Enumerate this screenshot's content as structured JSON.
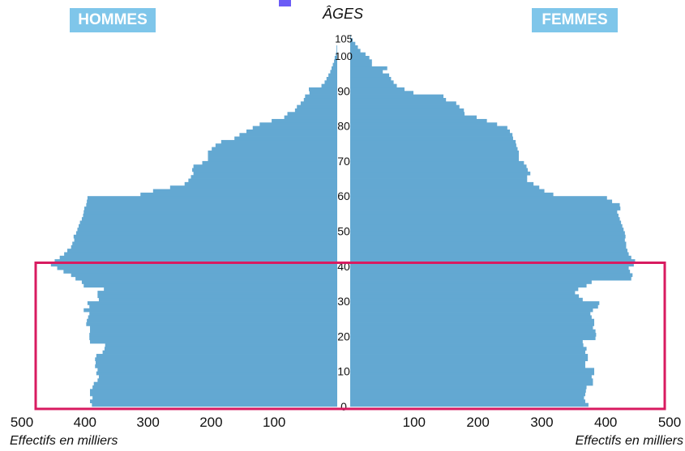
{
  "labels": {
    "hommes": "HOMMES",
    "femmes": "FEMMES",
    "ages": "ÂGES",
    "effectifs_left": "Effectifs en milliers",
    "effectifs_right": "Effectifs en milliers"
  },
  "colors": {
    "bars": "#63a8d2",
    "badge": "#7fc6ea",
    "highlight": "#d81b60",
    "corner_mark": "#6b5cf6"
  },
  "chart_data": {
    "type": "bar",
    "orientation": "horizontal",
    "title": "",
    "xlabel": "Effectifs en milliers",
    "ylabel": "ÂGES",
    "xlim": [
      0,
      500
    ],
    "age_range": [
      0,
      105
    ],
    "age_ticks": [
      0,
      10,
      20,
      30,
      40,
      50,
      60,
      70,
      80,
      90,
      100,
      105
    ],
    "value_ticks": [
      500,
      400,
      300,
      200,
      100
    ],
    "highlight_age_range": [
      0,
      41
    ],
    "series": [
      {
        "name": "HOMMES",
        "side": "left",
        "values": [
          389,
          392,
          388,
          392,
          392,
          388,
          386,
          380,
          378,
          382,
          380,
          384,
          383,
          384,
          382,
          372,
          369,
          368,
          392,
          393,
          393,
          392,
          392,
          398,
          397,
          395,
          393,
          402,
          393,
          396,
          378,
          380,
          380,
          370,
          402,
          405,
          415,
          422,
          434,
          444,
          454,
          448,
          440,
          433,
          428,
          422,
          420,
          417,
          418,
          414,
          412,
          410,
          408,
          405,
          403,
          402,
          401,
          398,
          397,
          396,
          312,
          292,
          265,
          242,
          236,
          232,
          228,
          230,
          228,
          214,
          205,
          205,
          205,
          199,
          193,
          184,
          163,
          155,
          144,
          134,
          123,
          104,
          84,
          79,
          67,
          64,
          58,
          53,
          51,
          44,
          45,
          25,
          20,
          17,
          14,
          11,
          9,
          7,
          5,
          4,
          2,
          1,
          1,
          0,
          0,
          0
        ]
      },
      {
        "name": "FEMMES",
        "side": "right",
        "values": [
          373,
          368,
          366,
          368,
          369,
          370,
          380,
          380,
          378,
          382,
          382,
          368,
          368,
          372,
          372,
          368,
          370,
          365,
          364,
          384,
          385,
          384,
          380,
          382,
          382,
          378,
          376,
          380,
          388,
          390,
          364,
          358,
          352,
          357,
          370,
          378,
          440,
          442,
          438,
          436,
          444,
          446,
          440,
          436,
          434,
          432,
          432,
          430,
          431,
          430,
          428,
          426,
          424,
          422,
          420,
          418,
          423,
          422,
          410,
          402,
          318,
          304,
          296,
          287,
          277,
          277,
          282,
          278,
          276,
          272,
          264,
          264,
          264,
          262,
          260,
          259,
          255,
          254,
          250,
          246,
          230,
          214,
          198,
          179,
          178,
          171,
          166,
          150,
          146,
          99,
          85,
          73,
          68,
          64,
          61,
          51,
          58,
          34,
          34,
          30,
          24,
          16,
          12,
          8,
          4,
          1
        ]
      }
    ]
  }
}
